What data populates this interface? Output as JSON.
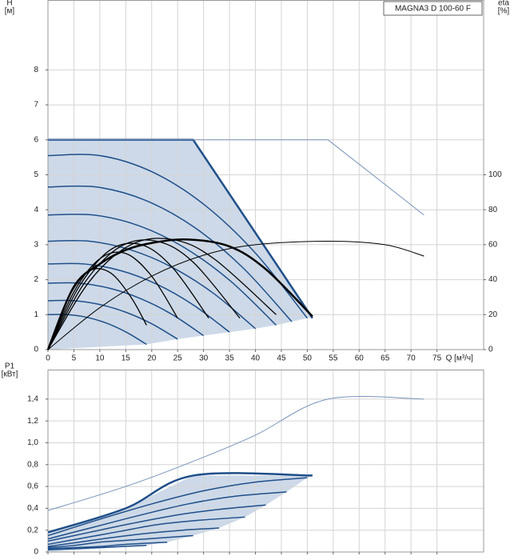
{
  "chart_data": [
    {
      "type": "line",
      "title": "MAGNA3 D 100-60 F",
      "xlabel": "Q [м³/ч]",
      "ylabel": [
        "H",
        "[м]"
      ],
      "y2label": [
        "eta",
        "[%]"
      ],
      "xlim": [
        0,
        84
      ],
      "xticks": [
        0,
        5,
        10,
        15,
        20,
        25,
        30,
        35,
        40,
        45,
        50,
        55,
        60,
        65,
        70,
        75
      ],
      "ylim": [
        0,
        10
      ],
      "yticks": [
        0,
        1,
        2,
        3,
        4,
        5,
        6,
        7,
        8
      ],
      "y2lim": [
        0,
        200
      ],
      "y2ticks": [
        0,
        20,
        40,
        60,
        80,
        100
      ],
      "grid": true,
      "fill": "#cdd9e8",
      "series": [
        {
          "color": "#1f4f8a",
          "linewidth": 2.5,
          "x": [
            0,
            28,
            51
          ],
          "values": [
            6,
            6,
            0.9
          ]
        },
        {
          "color": "#7a93b8",
          "linewidth": 1,
          "x": [
            0,
            54,
            72.5
          ],
          "values": [
            6,
            6,
            3.85
          ]
        },
        {
          "color": "#1f4f8a",
          "linewidth": 1.5,
          "x": [
            0,
            10,
            20,
            30,
            40,
            50
          ],
          "values": [
            5.55,
            5.55,
            5.09,
            4.16,
            2.76,
            0.9
          ]
        },
        {
          "color": "#1f4f8a",
          "linewidth": 1.5,
          "x": [
            0,
            9.4,
            18.8,
            28.2,
            37.6,
            47
          ],
          "values": [
            4.65,
            4.65,
            4.27,
            3.5,
            2.34,
            0.8
          ]
        },
        {
          "color": "#1f4f8a",
          "linewidth": 1.5,
          "x": [
            0,
            8.8,
            17.6,
            26.4,
            35.2,
            44
          ],
          "values": [
            3.85,
            3.85,
            3.54,
            2.91,
            1.96,
            0.7
          ]
        },
        {
          "color": "#1f4f8a",
          "linewidth": 1.5,
          "x": [
            0,
            8,
            16,
            24,
            32,
            40
          ],
          "values": [
            3.1,
            3.1,
            2.85,
            2.35,
            1.6,
            0.6
          ]
        },
        {
          "color": "#1f4f8a",
          "linewidth": 1.5,
          "x": [
            0,
            7,
            14,
            21,
            28,
            35
          ],
          "values": [
            2.45,
            2.45,
            2.26,
            1.87,
            1.28,
            0.5
          ]
        },
        {
          "color": "#1f4f8a",
          "linewidth": 1.5,
          "x": [
            0,
            6,
            12,
            18,
            24,
            30
          ],
          "values": [
            1.9,
            1.9,
            1.75,
            1.45,
            1.0,
            0.4
          ]
        },
        {
          "color": "#1f4f8a",
          "linewidth": 1.5,
          "x": [
            0,
            5,
            10,
            15,
            20,
            25
          ],
          "values": [
            1.4,
            1.4,
            1.29,
            1.07,
            0.74,
            0.3
          ]
        },
        {
          "color": "#1f4f8a",
          "linewidth": 1.5,
          "x": [
            0,
            3.8,
            7.6,
            11.4,
            15.2,
            19
          ],
          "values": [
            1.0,
            1.0,
            0.92,
            0.75,
            0.49,
            0.15
          ]
        },
        {
          "color": "#000000",
          "linewidth": 1,
          "axis": "y2",
          "x": [
            0,
            10,
            20,
            30,
            40,
            54,
            65,
            72.5
          ],
          "values": [
            0,
            24,
            42,
            54,
            60,
            62,
            60,
            53.5
          ]
        },
        {
          "color": "#000000",
          "linewidth": 2.5,
          "axis": "y2",
          "x": [
            0,
            5,
            10,
            15,
            20,
            27,
            35,
            42,
            51
          ],
          "values": [
            0,
            36,
            49,
            57,
            61,
            63,
            59,
            46,
            19
          ]
        },
        {
          "color": "#000000",
          "linewidth": 1.3,
          "axis": "y2",
          "x": [
            0,
            4,
            8,
            12,
            16,
            19
          ],
          "values": [
            0,
            30,
            45,
            44,
            30,
            14
          ]
        },
        {
          "color": "#000000",
          "linewidth": 1.3,
          "axis": "y2",
          "x": [
            0,
            5,
            10,
            15,
            20,
            25
          ],
          "values": [
            0,
            33,
            52,
            55,
            42,
            18
          ]
        },
        {
          "color": "#000000",
          "linewidth": 1.3,
          "axis": "y2",
          "x": [
            0,
            6,
            12,
            18,
            24,
            31
          ],
          "values": [
            0,
            36,
            57,
            60,
            47,
            18
          ]
        },
        {
          "color": "#000000",
          "linewidth": 1.3,
          "axis": "y2",
          "x": [
            0,
            7,
            14,
            21,
            28,
            37
          ],
          "values": [
            0,
            38,
            59,
            62,
            50,
            18
          ]
        },
        {
          "color": "#000000",
          "linewidth": 1.3,
          "axis": "y2",
          "x": [
            0,
            8,
            16,
            24,
            32,
            44
          ],
          "values": [
            0,
            39,
            60,
            63,
            52,
            20
          ]
        }
      ]
    },
    {
      "type": "line",
      "ylabel": [
        "P1",
        "[кВт]"
      ],
      "xlim": [
        0,
        84
      ],
      "xticks": [
        0,
        5,
        10,
        15,
        20,
        25,
        30,
        35,
        40,
        45,
        50,
        55,
        60,
        65,
        70,
        75
      ],
      "xtick_labels": false,
      "ylim": [
        0,
        1.67
      ],
      "yticks": [
        0,
        {
          "value": 0.2,
          "label": "0,2"
        },
        {
          "value": 0.4,
          "label": "0,4"
        },
        {
          "value": 0.6,
          "label": "0,6"
        },
        {
          "value": 0.8,
          "label": "0,8"
        },
        {
          "value": 1.0,
          "label": "1,0"
        },
        {
          "value": 1.2,
          "label": "1,2"
        },
        {
          "value": 1.4,
          "label": "1,4"
        }
      ],
      "grid": true,
      "fill": "#cdd9e8",
      "series": [
        {
          "color": "#1f4f8a",
          "linewidth": 2.5,
          "x": [
            0,
            15,
            28,
            51
          ],
          "values": [
            0.18,
            0.4,
            0.7,
            0.7
          ]
        },
        {
          "color": "#7a93b8",
          "linewidth": 1,
          "x": [
            0,
            15,
            28,
            40,
            54,
            72.5
          ],
          "values": [
            0.38,
            0.6,
            0.83,
            1.07,
            1.4,
            1.4
          ]
        },
        {
          "color": "#1f4f8a",
          "linewidth": 1.5,
          "x": [
            0,
            10,
            20,
            30,
            40,
            50
          ],
          "values": [
            0.15,
            0.3,
            0.44,
            0.56,
            0.64,
            0.68
          ]
        },
        {
          "color": "#1f4f8a",
          "linewidth": 1.5,
          "x": [
            0,
            9,
            18,
            27,
            36,
            46
          ],
          "values": [
            0.12,
            0.23,
            0.34,
            0.44,
            0.51,
            0.55
          ]
        },
        {
          "color": "#1f4f8a",
          "linewidth": 1.5,
          "x": [
            0,
            8,
            16,
            25,
            33,
            42
          ],
          "values": [
            0.1,
            0.18,
            0.26,
            0.34,
            0.39,
            0.43
          ]
        },
        {
          "color": "#1f4f8a",
          "linewidth": 1.5,
          "x": [
            0,
            7,
            14,
            21,
            29,
            38
          ],
          "values": [
            0.07,
            0.13,
            0.19,
            0.25,
            0.29,
            0.32
          ]
        },
        {
          "color": "#1f4f8a",
          "linewidth": 1.5,
          "x": [
            0,
            6,
            12,
            19,
            26,
            33
          ],
          "values": [
            0.05,
            0.09,
            0.13,
            0.17,
            0.2,
            0.22
          ]
        },
        {
          "color": "#1f4f8a",
          "linewidth": 1.5,
          "x": [
            0,
            5,
            10,
            16,
            22,
            28
          ],
          "values": [
            0.04,
            0.06,
            0.09,
            0.11,
            0.13,
            0.15
          ]
        },
        {
          "color": "#1f4f8a",
          "linewidth": 1.5,
          "x": [
            0,
            5,
            10,
            15,
            23
          ],
          "values": [
            0.03,
            0.04,
            0.05,
            0.07,
            0.09
          ]
        },
        {
          "color": "#1f4f8a",
          "linewidth": 1.5,
          "x": [
            0,
            5,
            10,
            19
          ],
          "values": [
            0.02,
            0.03,
            0.04,
            0.06
          ]
        }
      ]
    }
  ]
}
